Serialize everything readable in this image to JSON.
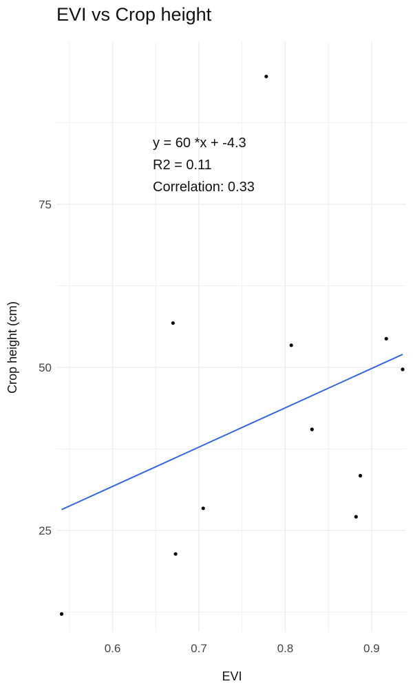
{
  "chart_data": {
    "type": "scatter",
    "title": "EVI vs Crop height",
    "xlabel": "EVI",
    "ylabel": "Crop height (cm)",
    "xlim": [
      0.535,
      0.94
    ],
    "ylim": [
      9.5,
      100
    ],
    "x_ticks": [
      0.6,
      0.7,
      0.8,
      0.9
    ],
    "y_ticks": [
      25,
      50,
      75
    ],
    "x_tick_labels": [
      "0.6",
      "0.7",
      "0.8",
      "0.9"
    ],
    "y_tick_labels": [
      "25",
      "50",
      "75"
    ],
    "grid": true,
    "points": [
      {
        "x": 0.541,
        "y": 12.2
      },
      {
        "x": 0.67,
        "y": 56.8
      },
      {
        "x": 0.673,
        "y": 21.4
      },
      {
        "x": 0.705,
        "y": 28.4
      },
      {
        "x": 0.778,
        "y": 94.6
      },
      {
        "x": 0.807,
        "y": 53.4
      },
      {
        "x": 0.831,
        "y": 40.5
      },
      {
        "x": 0.882,
        "y": 27.1
      },
      {
        "x": 0.887,
        "y": 33.4
      },
      {
        "x": 0.917,
        "y": 54.4
      },
      {
        "x": 0.936,
        "y": 49.7
      }
    ],
    "fit_line": {
      "color": "#3366E6",
      "x": [
        0.541,
        0.936
      ],
      "y": [
        28.2,
        52.0
      ]
    },
    "annotations": [
      "y = 60 *x + -4.3",
      "R2 = 0.11",
      "Correlation: 0.33"
    ],
    "colors": {
      "point": "#000000",
      "grid": "#ebebeb"
    }
  }
}
